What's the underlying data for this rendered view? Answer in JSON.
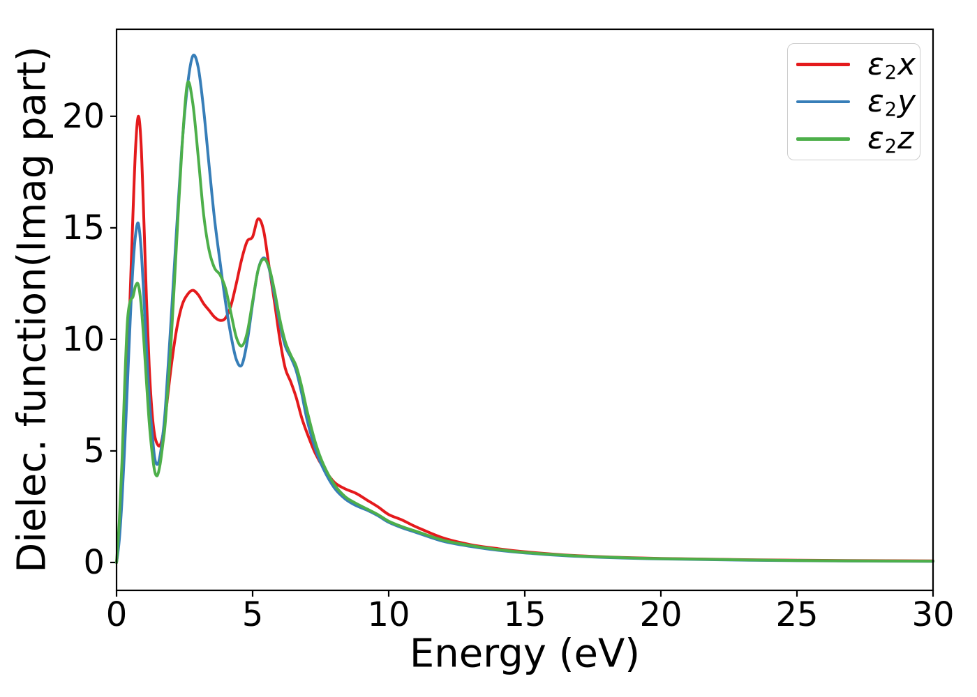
{
  "figure": {
    "background": "#ffffff",
    "axis_color": "#000000",
    "legend_border_color": "#cccccc"
  },
  "chart_data": {
    "type": "line",
    "title": "",
    "xlabel": "Energy (eV)",
    "ylabel": "Dielec. function(Imag part)",
    "xlim": [
      0,
      30
    ],
    "ylim": [
      -1.25,
      23.9
    ],
    "xticks": [
      0,
      5,
      10,
      15,
      20,
      25,
      30
    ],
    "yticks": [
      0,
      5,
      10,
      15,
      20
    ],
    "grid": false,
    "legend_position": "upper right",
    "x": [
      0,
      0.1,
      0.2,
      0.3,
      0.4,
      0.5,
      0.6,
      0.7,
      0.8,
      0.9,
      1.0,
      1.1,
      1.2,
      1.3,
      1.4,
      1.5,
      1.6,
      1.7,
      1.8,
      2.0,
      2.2,
      2.4,
      2.6,
      2.8,
      3.0,
      3.2,
      3.4,
      3.6,
      3.8,
      4.0,
      4.2,
      4.4,
      4.6,
      4.8,
      5.0,
      5.2,
      5.4,
      5.6,
      5.8,
      6.0,
      6.2,
      6.4,
      6.6,
      6.8,
      7.0,
      7.3,
      7.6,
      8.0,
      8.4,
      8.8,
      9.2,
      9.6,
      10.0,
      10.5,
      11.0,
      12.0,
      13.0,
      14.0,
      15.0,
      17.0,
      20.0,
      25.0,
      30.0
    ],
    "series": [
      {
        "name": "eps2x",
        "label": {
          "base": "ε",
          "sub": "2",
          "component": "x"
        },
        "color": "#e41a1c",
        "values": [
          0.0,
          1.2,
          3.0,
          5.5,
          8.5,
          12.0,
          15.5,
          18.6,
          20.0,
          18.8,
          15.5,
          11.8,
          8.8,
          6.8,
          5.7,
          5.3,
          5.25,
          5.7,
          6.6,
          8.7,
          10.4,
          11.5,
          12.0,
          12.2,
          12.0,
          11.6,
          11.3,
          11.0,
          10.85,
          10.95,
          11.5,
          12.5,
          13.6,
          14.4,
          14.6,
          15.4,
          14.9,
          13.3,
          11.7,
          10.0,
          8.7,
          8.1,
          7.4,
          6.5,
          5.8,
          4.9,
          4.25,
          3.6,
          3.3,
          3.1,
          2.8,
          2.5,
          2.15,
          1.9,
          1.6,
          1.1,
          0.8,
          0.62,
          0.48,
          0.3,
          0.18,
          0.1,
          0.07
        ]
      },
      {
        "name": "eps2y",
        "label": {
          "base": "ε",
          "sub": "2",
          "component": "y"
        },
        "color": "#377eb8",
        "values": [
          0.0,
          1.0,
          2.8,
          5.2,
          8.0,
          10.8,
          13.2,
          14.7,
          15.2,
          14.1,
          12.0,
          9.6,
          7.4,
          5.9,
          4.7,
          4.4,
          4.8,
          5.7,
          7.0,
          10.8,
          14.8,
          18.6,
          21.3,
          22.7,
          22.2,
          20.3,
          17.8,
          15.4,
          13.5,
          11.7,
          10.2,
          9.1,
          8.85,
          9.9,
          11.6,
          13.1,
          13.65,
          13.2,
          12.0,
          10.7,
          9.7,
          9.2,
          8.6,
          7.6,
          6.4,
          5.1,
          4.2,
          3.35,
          2.85,
          2.55,
          2.35,
          2.1,
          1.8,
          1.55,
          1.35,
          0.95,
          0.72,
          0.55,
          0.43,
          0.27,
          0.16,
          0.08,
          0.05
        ]
      },
      {
        "name": "eps2z",
        "label": {
          "base": "ε",
          "sub": "2",
          "component": "z"
        },
        "color": "#4daf4a",
        "values": [
          0.0,
          1.8,
          4.5,
          8.0,
          10.8,
          11.7,
          11.9,
          12.4,
          12.45,
          11.6,
          10.0,
          8.1,
          6.3,
          5.0,
          4.1,
          3.9,
          4.4,
          5.3,
          6.4,
          9.8,
          14.2,
          18.5,
          21.45,
          20.6,
          18.2,
          15.6,
          14.0,
          13.2,
          12.9,
          12.3,
          11.2,
          10.1,
          9.7,
          10.3,
          11.7,
          13.1,
          13.6,
          13.25,
          12.2,
          10.9,
          9.9,
          9.3,
          8.8,
          7.9,
          6.8,
          5.4,
          4.4,
          3.5,
          2.95,
          2.65,
          2.4,
          2.15,
          1.85,
          1.6,
          1.4,
          1.0,
          0.76,
          0.58,
          0.45,
          0.29,
          0.17,
          0.09,
          0.06
        ]
      }
    ]
  }
}
